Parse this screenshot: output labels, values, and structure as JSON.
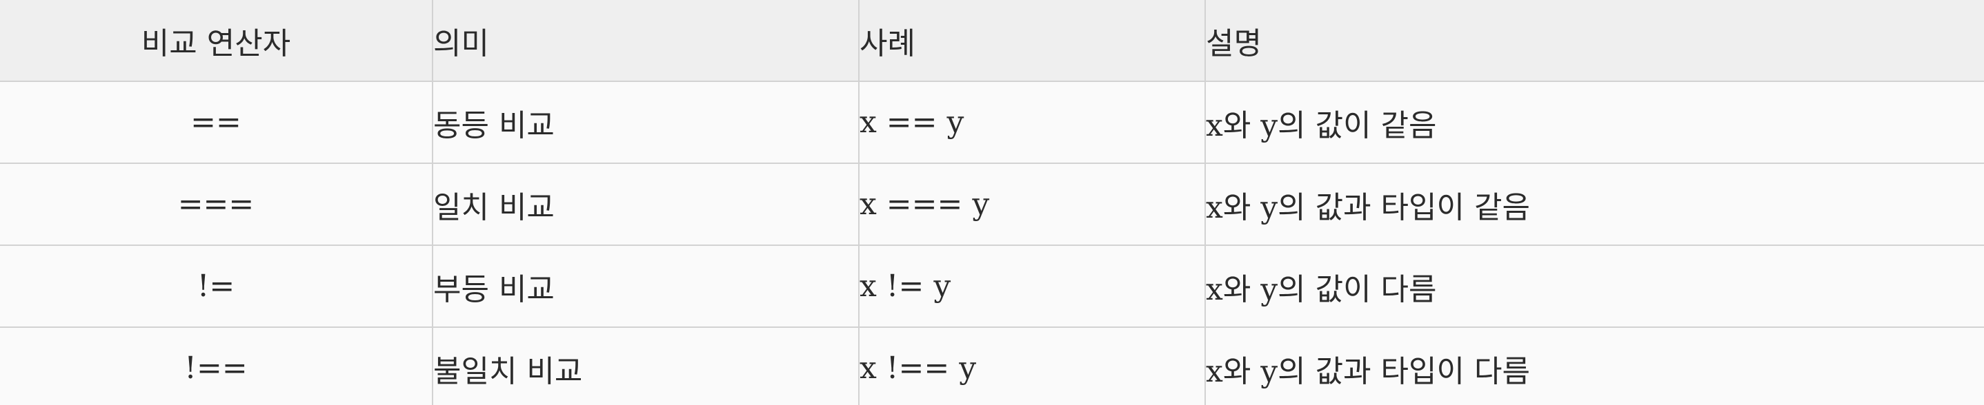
{
  "table": {
    "headers": [
      "비교 연산자",
      "의미",
      "사례",
      "설명"
    ],
    "rows": [
      [
        "==",
        "동등 비교",
        "x == y",
        "x와 y의 값이 같음"
      ],
      [
        "===",
        "일치 비교",
        "x === y",
        "x와 y의 값과 타입이 같음"
      ],
      [
        "!=",
        "부등 비교",
        "x != y",
        "x와 y의 값이 다름"
      ],
      [
        "!==",
        "불일치 비교",
        "x !== y",
        "x와 y의 값과 타입이 다름"
      ]
    ]
  }
}
